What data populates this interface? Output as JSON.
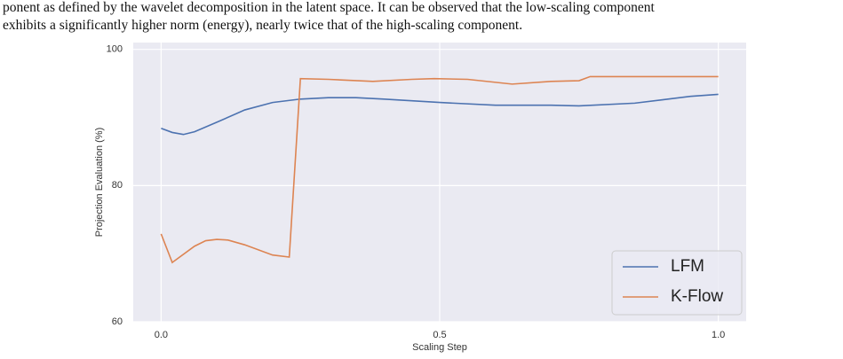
{
  "text": {
    "lines": [
      "ponent as defined by the wavelet decomposition in the latent space. It can be observed that the low-scaling component",
      "exhibits a significantly higher norm (energy), nearly twice that of the high-scaling component."
    ]
  },
  "chart_data": {
    "type": "line",
    "xlabel": "Scaling Step",
    "ylabel": "Projection Evaluation (%)",
    "xlim": [
      -0.05,
      1.05
    ],
    "ylim": [
      60,
      101
    ],
    "xticks": [
      {
        "value": 0,
        "label": "0.0"
      },
      {
        "value": 0.5,
        "label": "0.5"
      },
      {
        "value": 1,
        "label": "1.0"
      }
    ],
    "yticks": [
      60,
      80,
      100
    ],
    "grid": true,
    "legend": "lower right",
    "series": [
      {
        "name": "LFM",
        "color": "#4c72b0",
        "x": [
          0,
          0.02,
          0.04,
          0.06,
          0.1,
          0.15,
          0.2,
          0.25,
          0.3,
          0.35,
          0.4,
          0.5,
          0.6,
          0.7,
          0.75,
          0.85,
          0.9,
          0.95,
          1.0
        ],
        "values": [
          88.4,
          87.8,
          87.5,
          87.9,
          89.3,
          91.1,
          92.2,
          92.7,
          92.9,
          92.9,
          92.7,
          92.2,
          91.8,
          91.8,
          91.7,
          92.1,
          92.6,
          93.1,
          93.4
        ]
      },
      {
        "name": "K-Flow",
        "color": "#dd8452",
        "x": [
          0,
          0.02,
          0.06,
          0.08,
          0.1,
          0.12,
          0.15,
          0.2,
          0.23,
          0.25,
          0.3,
          0.38,
          0.45,
          0.49,
          0.55,
          0.63,
          0.7,
          0.75,
          0.77,
          0.9,
          1.0
        ],
        "values": [
          72.9,
          68.7,
          71.1,
          71.9,
          72.1,
          72.0,
          71.3,
          69.8,
          69.5,
          95.7,
          95.6,
          95.3,
          95.6,
          95.7,
          95.6,
          94.9,
          95.3,
          95.4,
          96.0,
          96.0,
          96.0
        ]
      }
    ]
  }
}
